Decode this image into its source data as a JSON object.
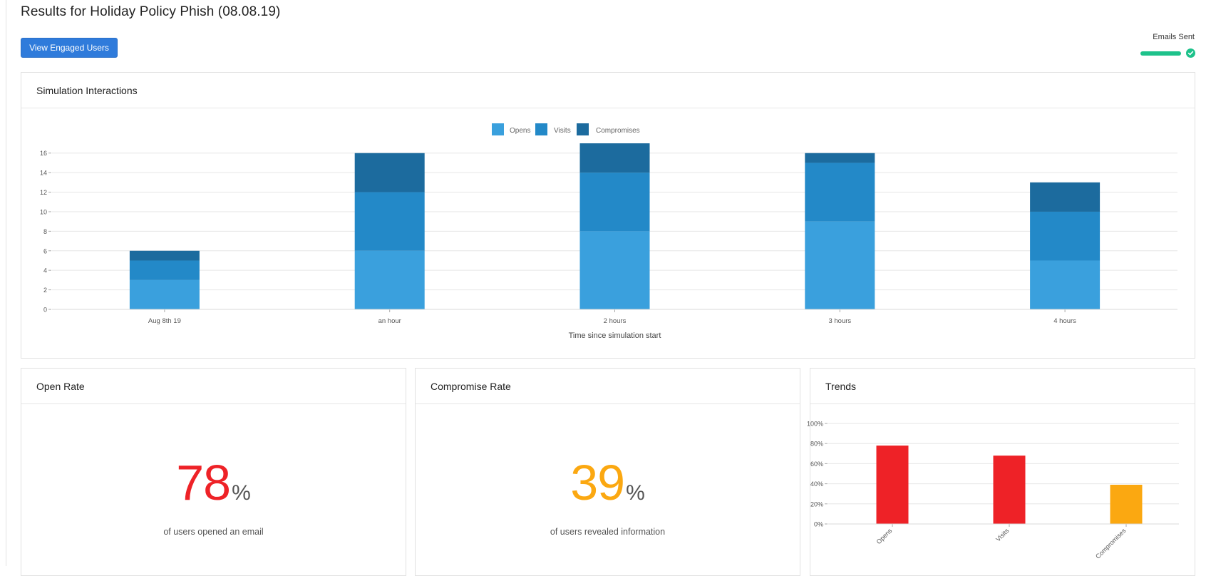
{
  "page": {
    "title": "Results for Holiday Policy Phish (08.08.19)",
    "view_engaged_button": "View Engaged Users"
  },
  "status": {
    "label": "Emails Sent",
    "progress": 1.0,
    "color": "#1ec28b",
    "icon": "check-circle-icon"
  },
  "interactions": {
    "header": "Simulation Interactions",
    "chart_data": {
      "type": "bar",
      "stacked": true,
      "categories": [
        "Aug 8th 19",
        "an hour",
        "2 hours",
        "3 hours",
        "4 hours"
      ],
      "series": [
        {
          "name": "Opens",
          "color": "#3aa0dd",
          "values": [
            3,
            6,
            8,
            9,
            5
          ]
        },
        {
          "name": "Visits",
          "color": "#2389c8",
          "values": [
            2,
            6,
            6,
            6,
            5
          ]
        },
        {
          "name": "Compromises",
          "color": "#1c6b9e",
          "values": [
            1,
            4,
            3,
            1,
            3
          ]
        }
      ],
      "yticks": [
        "0",
        "2",
        "4",
        "6",
        "8",
        "10",
        "12",
        "14",
        "16"
      ],
      "ylim": [
        0,
        16.2
      ],
      "xlabel": "Time since simulation start",
      "ylabel": "",
      "legend": "top-center",
      "grid": true
    }
  },
  "open_rate": {
    "header": "Open Rate",
    "value": "78",
    "unit": "%",
    "caption": "of users opened an email",
    "color": "#ee2227"
  },
  "compromise_rate": {
    "header": "Compromise Rate",
    "value": "39",
    "unit": "%",
    "caption": "of users revealed information",
    "color": "#fba811"
  },
  "trends": {
    "header": "Trends",
    "chart_data": {
      "type": "bar",
      "categories": [
        "Opens",
        "Visits",
        "Compromises"
      ],
      "values": [
        78,
        68,
        39
      ],
      "colors": [
        "#ee2227",
        "#ee2227",
        "#fba811"
      ],
      "yticks": [
        "0%",
        "20%",
        "40%",
        "60%",
        "80%",
        "100%"
      ],
      "ylim": [
        0,
        100
      ],
      "grid": true
    }
  }
}
